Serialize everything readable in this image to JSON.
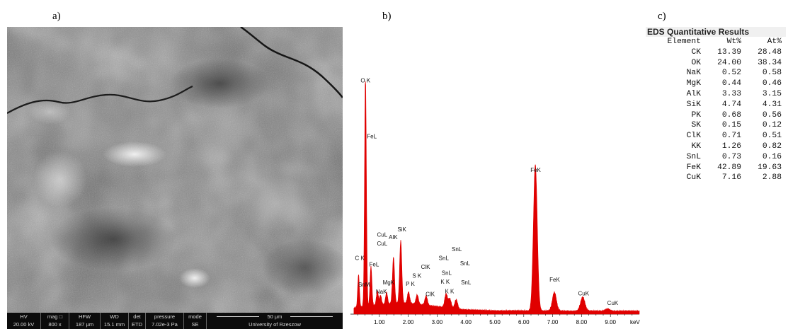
{
  "panels": {
    "a_label": "a)",
    "b_label": "b)",
    "c_label": "c)"
  },
  "sem": {
    "info_bar": [
      {
        "header": "HV",
        "value": "20.00 kV"
      },
      {
        "header": "mag □",
        "value": "800 x"
      },
      {
        "header": "HFW",
        "value": "187 μm"
      },
      {
        "header": "WD",
        "value": "15.1 mm"
      },
      {
        "header": "det",
        "value": "ETD"
      },
      {
        "header": "pressure",
        "value": "7.02e-3 Pa"
      },
      {
        "header": "mode",
        "value": "SE"
      }
    ],
    "scale_bar": "50 μm",
    "institution": "University of Rzeszow"
  },
  "chart_data": {
    "type": "line",
    "x_unit": "keV",
    "xlim": [
      0,
      10.0
    ],
    "ylim": [
      0,
      1.0
    ],
    "x_tick_labels": [
      "1.00",
      "2.00",
      "3.00",
      "4.00",
      "5.00",
      "6.00",
      "7.00",
      "8.00",
      "9.00",
      "keV"
    ],
    "x_ticks": [
      1,
      2,
      3,
      4,
      5,
      6,
      7,
      8,
      9
    ],
    "peaks": [
      {
        "label": "C K",
        "energy": 0.28,
        "height": 0.14
      },
      {
        "label": "O K",
        "energy": 0.52,
        "height": 1.0
      },
      {
        "label": "FeL",
        "energy": 0.71,
        "height": 0.17
      },
      {
        "label": "CuL",
        "energy": 0.93,
        "height": 0.06
      },
      {
        "label": "NaK",
        "energy": 1.04,
        "height": 0.04
      },
      {
        "label": "MgK",
        "energy": 1.25,
        "height": 0.05
      },
      {
        "label": "AlK",
        "energy": 1.49,
        "height": 0.2
      },
      {
        "label": "SiK",
        "energy": 1.74,
        "height": 0.27
      },
      {
        "label": "P K",
        "energy": 2.01,
        "height": 0.05
      },
      {
        "label": "S K",
        "energy": 2.31,
        "height": 0.04
      },
      {
        "label": "ClK",
        "energy": 2.62,
        "height": 0.04
      },
      {
        "label": "SnL",
        "energy": 3.44,
        "height": 0.04
      },
      {
        "label": "K K",
        "energy": 3.31,
        "height": 0.06
      },
      {
        "label": "SnL",
        "energy": 3.66,
        "height": 0.04
      },
      {
        "label": "FeK",
        "energy": 6.4,
        "height": 0.63
      },
      {
        "label": "FeK",
        "energy": 7.06,
        "height": 0.08
      },
      {
        "label": "CuK",
        "energy": 8.04,
        "height": 0.06
      },
      {
        "label": "CuK",
        "energy": 8.9,
        "height": 0.01
      }
    ],
    "annotations": [
      {
        "text": "O K",
        "energy": 0.52,
        "level": 0.995
      },
      {
        "text": "FeL",
        "energy": 0.74,
        "level": 0.755
      },
      {
        "text": "CuL",
        "energy": 1.1,
        "level": 0.333
      },
      {
        "text": "CuL",
        "energy": 1.1,
        "level": 0.295
      },
      {
        "text": "AlK",
        "energy": 1.48,
        "level": 0.322
      },
      {
        "text": "SiK",
        "energy": 1.78,
        "level": 0.355
      },
      {
        "text": "C K",
        "energy": 0.32,
        "level": 0.233
      },
      {
        "text": "FeL",
        "energy": 0.82,
        "level": 0.205
      },
      {
        "text": "SnM",
        "energy": 0.47,
        "level": 0.118
      },
      {
        "text": "MgK",
        "energy": 1.32,
        "level": 0.128
      },
      {
        "text": "NaK",
        "energy": 1.07,
        "level": 0.088
      },
      {
        "text": "P K",
        "energy": 2.07,
        "level": 0.121
      },
      {
        "text": "S K",
        "energy": 2.3,
        "level": 0.157
      },
      {
        "text": "ClK",
        "energy": 2.6,
        "level": 0.194
      },
      {
        "text": "ClK",
        "energy": 2.76,
        "level": 0.078
      },
      {
        "text": "SnL",
        "energy": 3.23,
        "level": 0.232
      },
      {
        "text": "SnL",
        "energy": 3.68,
        "level": 0.27
      },
      {
        "text": "SnL",
        "energy": 3.33,
        "level": 0.168
      },
      {
        "text": "SnL",
        "energy": 3.97,
        "level": 0.21
      },
      {
        "text": "SnL",
        "energy": 4.0,
        "level": 0.127
      },
      {
        "text": "K K",
        "energy": 3.28,
        "level": 0.131
      },
      {
        "text": "K K",
        "energy": 3.43,
        "level": 0.09
      },
      {
        "text": "FeK",
        "energy": 6.41,
        "level": 0.611
      },
      {
        "text": "FeK",
        "energy": 7.07,
        "level": 0.14
      },
      {
        "text": "CuK",
        "energy": 8.07,
        "level": 0.08
      },
      {
        "text": "CuK",
        "energy": 9.08,
        "level": 0.04
      }
    ],
    "color": "#e00000"
  },
  "eds_table": {
    "title": "EDS Quantitative Results",
    "columns": [
      "Element",
      "Wt%",
      "At%"
    ],
    "rows": [
      {
        "element": "CK",
        "wt": "13.39",
        "at": "28.48"
      },
      {
        "element": "OK",
        "wt": "24.00",
        "at": "38.34"
      },
      {
        "element": "NaK",
        "wt": "0.52",
        "at": "0.58"
      },
      {
        "element": "MgK",
        "wt": "0.44",
        "at": "0.46"
      },
      {
        "element": "AlK",
        "wt": "3.33",
        "at": "3.15"
      },
      {
        "element": "SiK",
        "wt": "4.74",
        "at": "4.31"
      },
      {
        "element": "PK",
        "wt": "0.68",
        "at": "0.56"
      },
      {
        "element": "SK",
        "wt": "0.15",
        "at": "0.12"
      },
      {
        "element": "ClK",
        "wt": "0.71",
        "at": "0.51"
      },
      {
        "element": "KK",
        "wt": "1.26",
        "at": "0.82"
      },
      {
        "element": "SnL",
        "wt": "0.73",
        "at": "0.16"
      },
      {
        "element": "FeK",
        "wt": "42.89",
        "at": "19.63"
      },
      {
        "element": "CuK",
        "wt": "7.16",
        "at": "2.88"
      }
    ]
  }
}
